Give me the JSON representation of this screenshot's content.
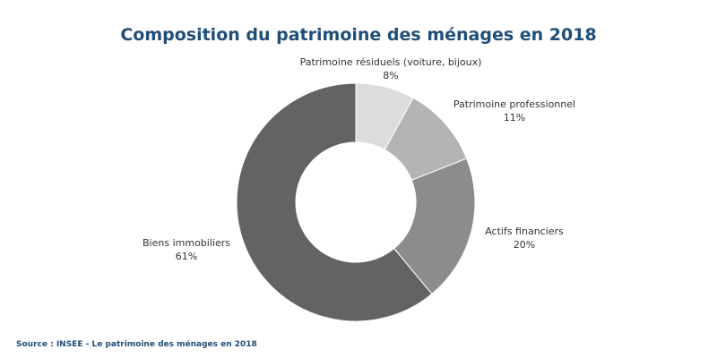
{
  "chart_data": {
    "type": "pie",
    "donut": true,
    "title": "Composition du patrimoine des ménages en 2018",
    "source": "Source : INSEE - Le patrimoine des ménages en 2018",
    "unit": "%",
    "slices": [
      {
        "label": "Patrimoine résiduels (voiture, bijoux)",
        "value": 8,
        "value_label": "8%",
        "color": "#dcdcdc"
      },
      {
        "label": "Patrimoine professionnel",
        "value": 11,
        "value_label": "11%",
        "color": "#b4b4b4"
      },
      {
        "label": "Actifs financiers",
        "value": 20,
        "value_label": "20%",
        "color": "#8c8c8c"
      },
      {
        "label": "Biens immobiliers",
        "value": 61,
        "value_label": "61%",
        "color": "#636462"
      }
    ],
    "title_color": "#1f4e79"
  }
}
